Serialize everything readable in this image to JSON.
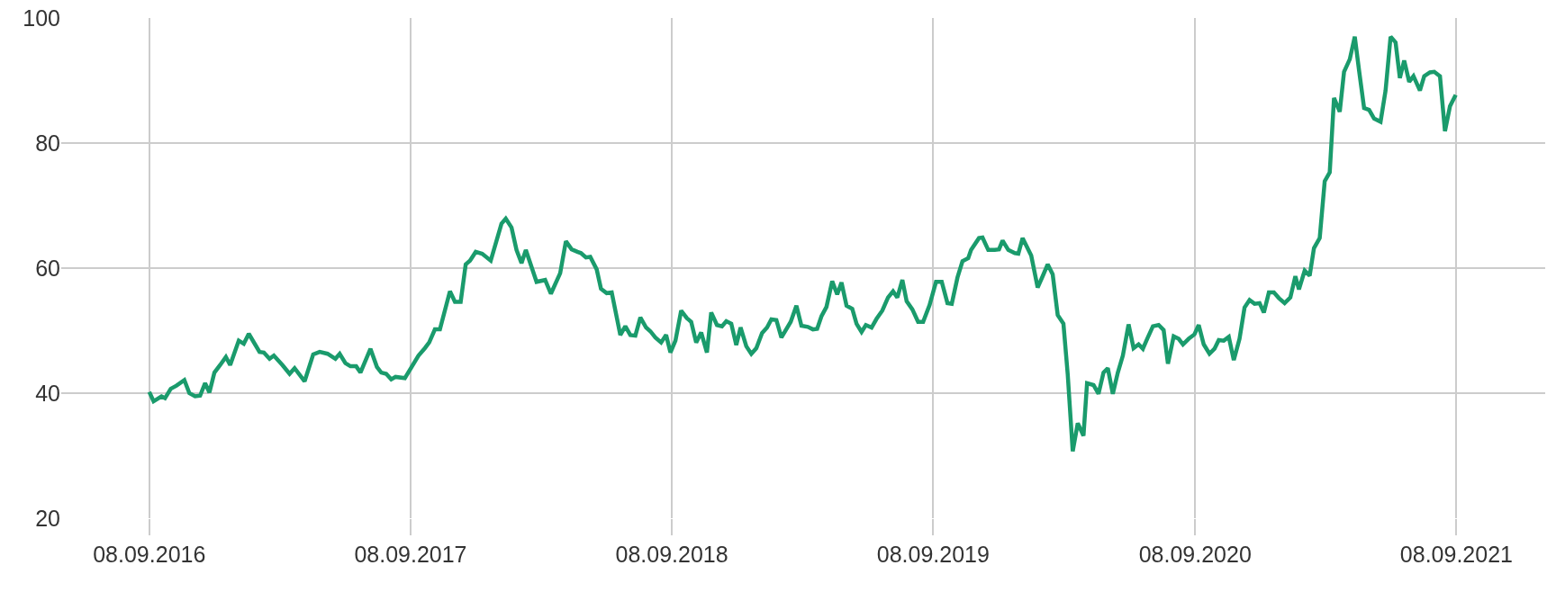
{
  "chart_data": {
    "type": "line",
    "grid": true,
    "marker": "none",
    "line_style": "solid",
    "xlim": [
      "2016-05-08",
      "2022-01-10"
    ],
    "ylim": [
      20,
      100
    ],
    "yticks": [
      20,
      40,
      60,
      80,
      100
    ],
    "xticks": [
      {
        "value": "2016-09-08",
        "label": "08.09.2016"
      },
      {
        "value": "2017-09-08",
        "label": "08.09.2017"
      },
      {
        "value": "2018-09-08",
        "label": "08.09.2018"
      },
      {
        "value": "2019-09-08",
        "label": "08.09.2019"
      },
      {
        "value": "2020-09-08",
        "label": "08.09.2020"
      },
      {
        "value": "2021-09-08",
        "label": "08.09.2021"
      }
    ],
    "x": [
      "2016-09-08",
      "2016-09-14",
      "2016-09-25",
      "2016-09-30",
      "2016-10-08",
      "2016-10-16",
      "2016-10-27",
      "2016-11-03",
      "2016-11-11",
      "2016-11-18",
      "2016-11-25",
      "2016-12-01",
      "2016-12-08",
      "2016-12-16",
      "2016-12-24",
      "2016-12-30",
      "2017-01-11",
      "2017-01-18",
      "2017-01-25",
      "2017-02-09",
      "2017-02-15",
      "2017-02-23",
      "2017-03-01",
      "2017-03-13",
      "2017-03-23",
      "2017-03-30",
      "2017-04-13",
      "2017-04-25",
      "2017-05-04",
      "2017-05-15",
      "2017-05-26",
      "2017-06-01",
      "2017-06-09",
      "2017-06-16",
      "2017-06-24",
      "2017-06-30",
      "2017-07-14",
      "2017-07-23",
      "2017-07-29",
      "2017-08-05",
      "2017-08-12",
      "2017-08-18",
      "2017-08-31",
      "2017-09-19",
      "2017-09-28",
      "2017-10-04",
      "2017-10-12",
      "2017-10-19",
      "2017-11-02",
      "2017-11-09",
      "2017-11-17",
      "2017-11-24",
      "2017-11-30",
      "2017-12-08",
      "2017-12-17",
      "2017-12-29",
      "2018-01-13",
      "2018-01-19",
      "2018-01-27",
      "2018-02-03",
      "2018-02-10",
      "2018-02-16",
      "2018-03-03",
      "2018-03-15",
      "2018-03-23",
      "2018-04-05",
      "2018-04-13",
      "2018-04-21",
      "2018-04-29",
      "2018-05-04",
      "2018-05-11",
      "2018-05-17",
      "2018-05-26",
      "2018-06-01",
      "2018-06-09",
      "2018-06-16",
      "2018-06-28",
      "2018-07-05",
      "2018-07-12",
      "2018-07-19",
      "2018-07-26",
      "2018-08-03",
      "2018-08-09",
      "2018-08-16",
      "2018-08-24",
      "2018-08-31",
      "2018-09-06",
      "2018-09-13",
      "2018-09-21",
      "2018-09-29",
      "2018-10-05",
      "2018-10-12",
      "2018-10-19",
      "2018-10-27",
      "2018-11-02",
      "2018-11-10",
      "2018-11-17",
      "2018-11-23",
      "2018-11-30",
      "2018-12-07",
      "2018-12-13",
      "2018-12-21",
      "2018-12-28",
      "2019-01-04",
      "2019-01-12",
      "2019-01-19",
      "2019-01-25",
      "2019-02-01",
      "2019-02-08",
      "2019-02-21",
      "2019-03-01",
      "2019-03-08",
      "2019-03-17",
      "2019-03-24",
      "2019-03-30",
      "2019-04-05",
      "2019-04-12",
      "2019-04-20",
      "2019-04-27",
      "2019-05-03",
      "2019-05-10",
      "2019-05-18",
      "2019-05-24",
      "2019-05-31",
      "2019-06-06",
      "2019-06-14",
      "2019-06-21",
      "2019-06-29",
      "2019-07-07",
      "2019-07-14",
      "2019-07-20",
      "2019-07-27",
      "2019-08-02",
      "2019-08-10",
      "2019-08-18",
      "2019-08-25",
      "2019-09-03",
      "2019-09-12",
      "2019-09-20",
      "2019-09-28",
      "2019-10-04",
      "2019-10-12",
      "2019-10-19",
      "2019-10-27",
      "2019-10-31",
      "2019-11-11",
      "2019-11-16",
      "2019-11-24",
      "2019-12-03",
      "2019-12-09",
      "2019-12-14",
      "2019-12-22",
      "2019-12-31",
      "2020-01-05",
      "2020-01-11",
      "2020-01-23",
      "2020-02-01",
      "2020-02-08",
      "2020-02-15",
      "2020-02-22",
      "2020-02-29",
      "2020-03-08",
      "2020-03-14",
      "2020-03-21",
      "2020-03-28",
      "2020-04-05",
      "2020-04-10",
      "2020-04-19",
      "2020-04-26",
      "2020-05-03",
      "2020-05-09",
      "2020-05-16",
      "2020-05-23",
      "2020-05-30",
      "2020-06-07",
      "2020-06-14",
      "2020-06-21",
      "2020-06-27",
      "2020-07-03",
      "2020-07-11",
      "2020-07-19",
      "2020-07-26",
      "2020-08-01",
      "2020-08-09",
      "2020-08-16",
      "2020-08-22",
      "2020-08-30",
      "2020-09-07",
      "2020-09-13",
      "2020-09-20",
      "2020-09-28",
      "2020-10-05",
      "2020-10-11",
      "2020-10-18",
      "2020-10-25",
      "2020-11-01",
      "2020-11-09",
      "2020-11-16",
      "2020-11-23",
      "2020-11-30",
      "2020-12-07",
      "2020-12-13",
      "2020-12-20",
      "2020-12-27",
      "2021-01-03",
      "2021-01-11",
      "2021-01-19",
      "2021-01-26",
      "2021-01-31",
      "2021-02-08",
      "2021-02-15",
      "2021-02-21",
      "2021-03-01",
      "2021-03-08",
      "2021-03-15",
      "2021-03-21",
      "2021-03-29",
      "2021-04-04",
      "2021-04-12",
      "2021-04-19",
      "2021-04-25",
      "2021-05-02",
      "2021-05-09",
      "2021-05-16",
      "2021-05-25",
      "2021-06-01",
      "2021-06-08",
      "2021-06-15",
      "2021-06-21",
      "2021-06-27",
      "2021-07-04",
      "2021-07-10",
      "2021-07-19",
      "2021-07-25",
      "2021-08-02",
      "2021-08-08",
      "2021-08-16",
      "2021-08-23",
      "2021-08-30",
      "2021-09-07"
    ],
    "series": [
      {
        "color": "#1a9b6c",
        "values": [
          40.2,
          38.7,
          39.5,
          39.2,
          40.7,
          41.2,
          42.1,
          40.0,
          39.5,
          39.6,
          41.6,
          40.1,
          43.3,
          44.5,
          45.8,
          44.5,
          48.4,
          47.9,
          49.5,
          46.6,
          46.5,
          45.5,
          46.0,
          44.5,
          43.1,
          44.0,
          41.9,
          46.2,
          46.6,
          46.3,
          45.5,
          46.3,
          44.8,
          44.3,
          44.3,
          43.3,
          47.1,
          44.2,
          43.3,
          43.1,
          42.2,
          42.6,
          42.4,
          46.0,
          47.2,
          48.1,
          50.2,
          50.2,
          56.3,
          54.6,
          54.6,
          60.6,
          61.2,
          62.6,
          62.3,
          61.2,
          67.1,
          67.9,
          66.5,
          62.9,
          60.8,
          62.9,
          57.8,
          58.1,
          55.9,
          59.2,
          64.3,
          63.0,
          62.6,
          62.4,
          61.7,
          61.8,
          59.8,
          56.7,
          56.0,
          56.1,
          49.3,
          50.7,
          49.3,
          49.2,
          52.1,
          50.5,
          49.9,
          48.9,
          48.1,
          49.3,
          46.5,
          48.4,
          53.2,
          52.0,
          51.4,
          48.1,
          49.7,
          46.5,
          52.9,
          50.9,
          50.7,
          51.5,
          51.1,
          47.7,
          50.5,
          47.5,
          46.3,
          47.2,
          49.6,
          50.5,
          51.8,
          51.7,
          48.9,
          51.4,
          54.0,
          50.8,
          50.6,
          50.2,
          50.3,
          52.3,
          53.8,
          57.9,
          55.8,
          57.7,
          54.0,
          53.5,
          51.1,
          49.8,
          50.9,
          50.5,
          51.9,
          53.2,
          55.3,
          56.3,
          55.3,
          58.1,
          54.7,
          53.4,
          51.4,
          51.4,
          54.1,
          57.8,
          57.8,
          54.4,
          54.3,
          58.5,
          61.1,
          61.6,
          62.9,
          64.8,
          64.9,
          62.9,
          62.9,
          63.0,
          64.4,
          62.9,
          62.4,
          62.3,
          64.8,
          62.0,
          56.9,
          58.7,
          60.6,
          59.0,
          52.5,
          51.1,
          43.0,
          30.7,
          35.2,
          33.2,
          41.6,
          41.3,
          39.9,
          43.3,
          44.0,
          39.9,
          43.3,
          46.0,
          51.0,
          47.2,
          47.8,
          47.1,
          48.7,
          50.7,
          50.9,
          50.1,
          44.7,
          49.1,
          48.7,
          47.8,
          48.7,
          49.4,
          50.9,
          47.8,
          46.3,
          47.1,
          48.5,
          48.4,
          49.0,
          45.3,
          48.7,
          53.7,
          54.9,
          54.3,
          54.4,
          52.9,
          56.1,
          56.1,
          55.2,
          54.4,
          55.3,
          58.7,
          56.6,
          59.6,
          58.8,
          63.2,
          64.8,
          73.9,
          75.3,
          87.2,
          85.0,
          91.4,
          93.4,
          97.0,
          91.6,
          85.6,
          85.3,
          83.9,
          83.4,
          88.4,
          97.0,
          96.1,
          90.4,
          93.2,
          89.8,
          90.7,
          88.4,
          90.7,
          91.3,
          91.4,
          90.7,
          81.9,
          85.9,
          87.7
        ]
      }
    ]
  }
}
